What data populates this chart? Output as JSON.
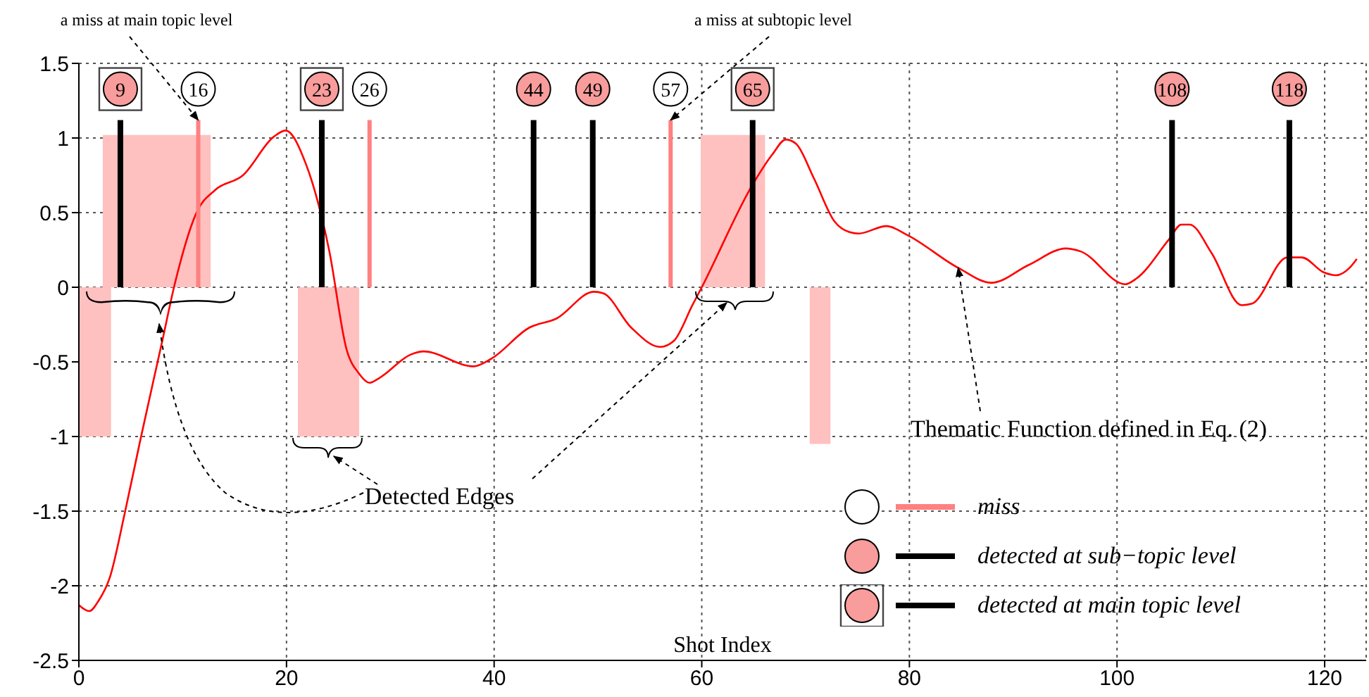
{
  "chart_data": {
    "type": "line",
    "xlabel": "Shot Index",
    "xlim": [
      0,
      124
    ],
    "xticks": [
      0,
      20,
      40,
      60,
      80,
      100,
      120
    ],
    "ylim": [
      -2.5,
      1.5
    ],
    "yticks": [
      -2.5,
      -2,
      -1.5,
      -1,
      -0.5,
      0,
      0.5,
      1,
      1.5
    ],
    "grid": true,
    "legend": "bottom right",
    "annotations": [
      {
        "text": "a miss at main topic level",
        "x": 11.5,
        "y": 1.12
      },
      {
        "text": "a miss at subtopic level",
        "x": 57,
        "y": 1.12
      },
      "Detected Edges",
      {
        "text": "Thematic Function defined in Eq. (2)",
        "x": 84.7,
        "y": 0.13
      },
      {
        "text": "9",
        "x": 4,
        "y": 1.12
      },
      {
        "text": "16",
        "x": 11.5,
        "y": 1.12
      },
      {
        "text": "23",
        "x": 23.4,
        "y": 1.12
      },
      {
        "text": "26",
        "x": 28,
        "y": 1.12
      },
      {
        "text": "44",
        "x": 43.8,
        "y": 1.12
      },
      {
        "text": "49",
        "x": 49.5,
        "y": 1.12
      },
      {
        "text": "57",
        "x": 57,
        "y": 1.12
      },
      {
        "text": "65",
        "x": 64.9,
        "y": 1.12
      },
      {
        "text": "108",
        "x": 105.3,
        "y": 1.12
      },
      {
        "text": "118",
        "x": 116.6,
        "y": 1.12
      }
    ],
    "series": [
      {
        "type": "area",
        "color": "#ffc0c0",
        "x": [
          2.3,
          12.7
        ],
        "values": [
          1.02,
          1.02
        ]
      },
      {
        "type": "area",
        "color": "#ffc0c0",
        "x": [
          59.9,
          66.1
        ],
        "values": [
          1.02,
          1.02
        ]
      },
      {
        "type": "area",
        "color": "#ffc0c0",
        "x": [
          0,
          3.1
        ],
        "values": [
          -1,
          -1
        ]
      },
      {
        "type": "area",
        "color": "#ffc0c0",
        "x": [
          21.1,
          27
        ],
        "values": [
          -1,
          -1
        ]
      },
      {
        "type": "area",
        "color": "#ffc0c0",
        "x": [
          70.4,
          72.4
        ],
        "values": [
          -1.05,
          -1.05
        ]
      },
      {
        "type": "bar",
        "name": "miss",
        "color": "#ff8080",
        "marker": "circle",
        "x": [
          11.5,
          28,
          57
        ],
        "values": [
          1.12,
          1.12,
          1.12
        ]
      },
      {
        "type": "bar",
        "name": "detected at sub−topic level",
        "color": "#000000",
        "marker": "circle",
        "x": [
          43.8,
          49.5,
          105.3,
          116.6
        ],
        "values": [
          1.12,
          1.12,
          1.12,
          1.12
        ]
      },
      {
        "type": "bar",
        "name": "detected at main topic level",
        "color": "#000000",
        "marker": "square",
        "x": [
          4,
          23.4,
          64.9
        ],
        "values": [
          1.12,
          1.12,
          1.12
        ]
      },
      {
        "color": "#ff0000",
        "x": [
          0,
          1,
          1.9,
          3,
          4.4,
          5.9,
          8,
          9.3,
          11.4,
          13.1,
          15.8,
          18.8,
          19.9,
          21.9,
          24.1,
          25.8,
          27,
          28,
          28.9,
          32,
          33.2,
          38,
          39.7,
          43.4,
          46,
          49.6,
          50.5,
          53.2,
          56,
          57.3,
          59.1,
          60,
          65,
          66.8,
          68.1,
          69.1,
          70.8,
          72.8,
          74.2,
          75.1,
          77.8,
          79.8,
          84.7,
          87.9,
          91.5,
          95.1,
          96.5,
          100.8,
          101.9,
          105,
          106.2,
          107,
          109.1,
          112,
          113,
          116.4,
          117.8,
          119.9,
          121.1,
          122.4,
          123.1
        ],
        "values": [
          -2.13,
          -2.17,
          -2.1,
          -1.94,
          -1.52,
          -1.03,
          -0.37,
          0.04,
          0.51,
          0.65,
          0.75,
          1.01,
          1.05,
          0.82,
          0.25,
          -0.42,
          -0.58,
          -0.64,
          -0.61,
          -0.45,
          -0.43,
          -0.53,
          -0.48,
          -0.27,
          -0.21,
          -0.03,
          -0.04,
          -0.27,
          -0.4,
          -0.36,
          -0.12,
          0,
          0.7,
          0.89,
          0.99,
          0.96,
          0.73,
          0.44,
          0.37,
          0.36,
          0.41,
          0.35,
          0.13,
          0.03,
          0.15,
          0.26,
          0.24,
          0.02,
          0.06,
          0.32,
          0.42,
          0.42,
          0.23,
          -0.12,
          -0.11,
          0.2,
          0.2,
          0.1,
          0.08,
          0.13,
          0.19
        ]
      }
    ]
  }
}
